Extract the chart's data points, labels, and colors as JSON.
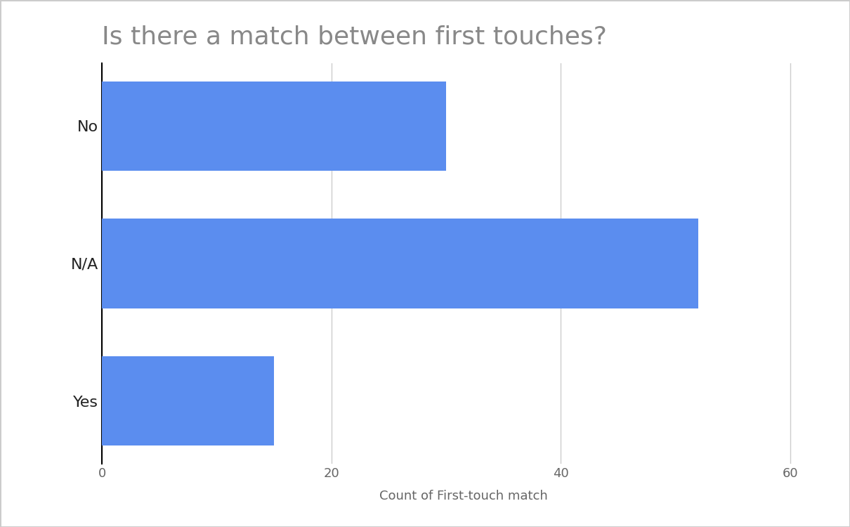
{
  "title": "Is there a match between first touches?",
  "title_fontsize": 26,
  "title_color": "#888888",
  "categories": [
    "Yes",
    "N/A",
    "No"
  ],
  "values": [
    15,
    52,
    30
  ],
  "bar_color": "#5B8DEF",
  "xlabel": "Count of First-touch match",
  "xlabel_fontsize": 13,
  "xlabel_color": "#666666",
  "ytick_fontsize": 16,
  "xtick_fontsize": 13,
  "xtick_color": "#666666",
  "ytick_color": "#222222",
  "xlim": [
    0,
    63
  ],
  "xticks": [
    0,
    20,
    40,
    60
  ],
  "background_color": "#ffffff",
  "grid_color": "#cccccc",
  "bar_height": 0.65,
  "figure_width": 12.1,
  "figure_height": 7.5,
  "dpi": 100
}
